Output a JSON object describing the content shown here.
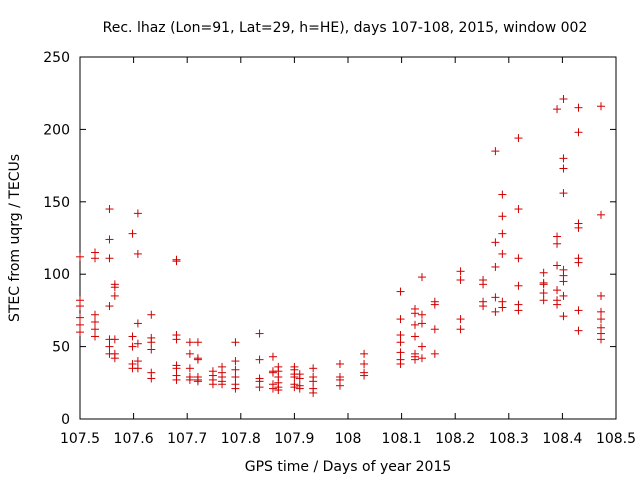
{
  "chart_data": {
    "type": "scatter",
    "title": "Rec. lhaz (Lon=91, Lat=29, h=HE), days 107-108, 2015, window 002",
    "xlabel": "GPS time / Days of year 2015",
    "ylabel": "STEC from uqrg / TECUs",
    "xlim": [
      107.5,
      108.5
    ],
    "ylim": [
      0,
      250
    ],
    "x_ticks": [
      "107.5",
      "107.6",
      "107.7",
      "107.8",
      "107.9",
      "108",
      "108.1",
      "108.2",
      "108.3",
      "108.4",
      "108.5"
    ],
    "y_ticks": [
      "0",
      "50",
      "100",
      "150",
      "200",
      "250"
    ],
    "grid": false,
    "marker": "+",
    "marker_color": "#d00000",
    "series": [
      {
        "points": [
          [
            107.5,
            112
          ],
          [
            107.5,
            82
          ],
          [
            107.5,
            78
          ],
          [
            107.5,
            70
          ],
          [
            107.5,
            65
          ],
          [
            107.5,
            60
          ],
          [
            107.528,
            115
          ],
          [
            107.528,
            111
          ],
          [
            107.528,
            72
          ],
          [
            107.528,
            67
          ],
          [
            107.528,
            62
          ],
          [
            107.528,
            57
          ],
          [
            107.555,
            145
          ],
          [
            107.555,
            124
          ],
          [
            107.555,
            111
          ],
          [
            107.555,
            78
          ],
          [
            107.555,
            55
          ],
          [
            107.555,
            50
          ],
          [
            107.555,
            45
          ],
          [
            107.565,
            93
          ],
          [
            107.565,
            91
          ],
          [
            107.565,
            85
          ],
          [
            107.565,
            55
          ],
          [
            107.565,
            45
          ],
          [
            107.565,
            42
          ],
          [
            107.598,
            128
          ],
          [
            107.598,
            57
          ],
          [
            107.598,
            50
          ],
          [
            107.598,
            38
          ],
          [
            107.598,
            35
          ],
          [
            107.608,
            142
          ],
          [
            107.608,
            114
          ],
          [
            107.608,
            66
          ],
          [
            107.608,
            52
          ],
          [
            107.608,
            40
          ],
          [
            107.608,
            35
          ],
          [
            107.633,
            72
          ],
          [
            107.633,
            56
          ],
          [
            107.633,
            53
          ],
          [
            107.633,
            48
          ],
          [
            107.633,
            32
          ],
          [
            107.633,
            28
          ],
          [
            107.68,
            110
          ],
          [
            107.68,
            109
          ],
          [
            107.68,
            58
          ],
          [
            107.68,
            55
          ],
          [
            107.68,
            37
          ],
          [
            107.68,
            35
          ],
          [
            107.68,
            30
          ],
          [
            107.68,
            27
          ],
          [
            107.705,
            53
          ],
          [
            107.705,
            45
          ],
          [
            107.705,
            35
          ],
          [
            107.705,
            29
          ],
          [
            107.705,
            27
          ],
          [
            107.72,
            53
          ],
          [
            107.72,
            42
          ],
          [
            107.72,
            41
          ],
          [
            107.72,
            29
          ],
          [
            107.72,
            27
          ],
          [
            107.72,
            26
          ],
          [
            107.748,
            33
          ],
          [
            107.748,
            30
          ],
          [
            107.748,
            27
          ],
          [
            107.748,
            24
          ],
          [
            107.765,
            36
          ],
          [
            107.765,
            32
          ],
          [
            107.765,
            29
          ],
          [
            107.765,
            26
          ],
          [
            107.765,
            24
          ],
          [
            107.79,
            53
          ],
          [
            107.79,
            40
          ],
          [
            107.79,
            34
          ],
          [
            107.79,
            29
          ],
          [
            107.79,
            24
          ],
          [
            107.79,
            21
          ],
          [
            107.835,
            59
          ],
          [
            107.835,
            41
          ],
          [
            107.835,
            28
          ],
          [
            107.835,
            26
          ],
          [
            107.835,
            22
          ],
          [
            107.86,
            43
          ],
          [
            107.86,
            33
          ],
          [
            107.86,
            32
          ],
          [
            107.86,
            24
          ],
          [
            107.86,
            21
          ],
          [
            107.87,
            36
          ],
          [
            107.87,
            33
          ],
          [
            107.87,
            29
          ],
          [
            107.87,
            25
          ],
          [
            107.87,
            22
          ],
          [
            107.87,
            20
          ],
          [
            107.9,
            36
          ],
          [
            107.9,
            34
          ],
          [
            107.9,
            31
          ],
          [
            107.9,
            29
          ],
          [
            107.9,
            24
          ],
          [
            107.9,
            22
          ],
          [
            107.91,
            31
          ],
          [
            107.91,
            28
          ],
          [
            107.91,
            23
          ],
          [
            107.91,
            21
          ],
          [
            107.935,
            35
          ],
          [
            107.935,
            29
          ],
          [
            107.935,
            26
          ],
          [
            107.935,
            21
          ],
          [
            107.935,
            18
          ],
          [
            107.985,
            38
          ],
          [
            107.985,
            29
          ],
          [
            107.985,
            27
          ],
          [
            107.985,
            23
          ],
          [
            108.03,
            45
          ],
          [
            108.03,
            38
          ],
          [
            108.03,
            32
          ],
          [
            108.03,
            30
          ],
          [
            108.098,
            88
          ],
          [
            108.098,
            69
          ],
          [
            108.098,
            58
          ],
          [
            108.098,
            53
          ],
          [
            108.098,
            46
          ],
          [
            108.098,
            41
          ],
          [
            108.098,
            38
          ],
          [
            108.125,
            76
          ],
          [
            108.125,
            73
          ],
          [
            108.125,
            65
          ],
          [
            108.125,
            57
          ],
          [
            108.125,
            45
          ],
          [
            108.125,
            43
          ],
          [
            108.125,
            41
          ],
          [
            108.138,
            98
          ],
          [
            108.138,
            72
          ],
          [
            108.138,
            66
          ],
          [
            108.138,
            50
          ],
          [
            108.138,
            42
          ],
          [
            108.162,
            81
          ],
          [
            108.162,
            79
          ],
          [
            108.162,
            62
          ],
          [
            108.162,
            45
          ],
          [
            108.21,
            102
          ],
          [
            108.21,
            96
          ],
          [
            108.21,
            69
          ],
          [
            108.21,
            62
          ],
          [
            108.252,
            96
          ],
          [
            108.252,
            93
          ],
          [
            108.252,
            81
          ],
          [
            108.252,
            78
          ],
          [
            108.275,
            185
          ],
          [
            108.275,
            122
          ],
          [
            108.275,
            105
          ],
          [
            108.275,
            84
          ],
          [
            108.275,
            74
          ],
          [
            108.288,
            155
          ],
          [
            108.288,
            140
          ],
          [
            108.288,
            128
          ],
          [
            108.288,
            114
          ],
          [
            108.288,
            81
          ],
          [
            108.288,
            77
          ],
          [
            108.318,
            194
          ],
          [
            108.318,
            145
          ],
          [
            108.318,
            111
          ],
          [
            108.318,
            92
          ],
          [
            108.318,
            79
          ],
          [
            108.318,
            75
          ],
          [
            108.365,
            101
          ],
          [
            108.365,
            94
          ],
          [
            108.365,
            93
          ],
          [
            108.365,
            87
          ],
          [
            108.365,
            82
          ],
          [
            108.39,
            214
          ],
          [
            108.39,
            126
          ],
          [
            108.39,
            121
          ],
          [
            108.39,
            106
          ],
          [
            108.39,
            89
          ],
          [
            108.39,
            82
          ],
          [
            108.39,
            79
          ],
          [
            108.402,
            221
          ],
          [
            108.402,
            180
          ],
          [
            108.402,
            173
          ],
          [
            108.402,
            156
          ],
          [
            108.402,
            103
          ],
          [
            108.402,
            99
          ],
          [
            108.402,
            95
          ],
          [
            108.402,
            85
          ],
          [
            108.402,
            71
          ],
          [
            108.43,
            215
          ],
          [
            108.43,
            198
          ],
          [
            108.43,
            135
          ],
          [
            108.43,
            132
          ],
          [
            108.43,
            111
          ],
          [
            108.43,
            108
          ],
          [
            108.43,
            75
          ],
          [
            108.43,
            61
          ],
          [
            108.472,
            216
          ],
          [
            108.472,
            141
          ],
          [
            108.472,
            85
          ],
          [
            108.472,
            74
          ],
          [
            108.472,
            69
          ],
          [
            108.472,
            63
          ],
          [
            108.472,
            59
          ],
          [
            108.472,
            55
          ]
        ]
      }
    ]
  }
}
